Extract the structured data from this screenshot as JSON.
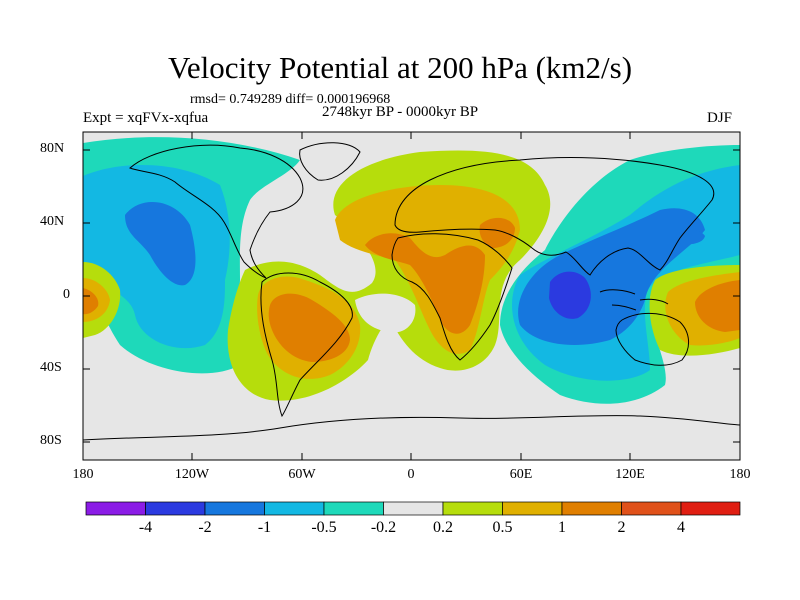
{
  "title": "Velocity Potential at 200 hPa (km2/s)",
  "stats_line": "rmsd= 0.749289 diff= 0.000196968",
  "experiment_label": "Expt = xqFVx-xqfua",
  "period_label": "2748kyr BP - 0000kyr BP",
  "season_label": "DJF",
  "lat_labels": [
    "80N",
    "40N",
    "0",
    "40S",
    "80S"
  ],
  "lon_labels": [
    "180",
    "120W",
    "60W",
    "0",
    "60E",
    "120E",
    "180"
  ],
  "chart_data": {
    "type": "heatmap",
    "title": "Velocity Potential at 200 hPa (km2/s)",
    "projection": "cylindrical equidistant",
    "x_range": [
      -180,
      180
    ],
    "y_range": [
      -90,
      90
    ],
    "x_ticks": [
      -180,
      -120,
      -60,
      0,
      60,
      120,
      180
    ],
    "y_ticks": [
      80,
      40,
      0,
      -40,
      -80
    ],
    "colorbar": {
      "levels": [
        -4,
        -2,
        -1,
        -0.5,
        -0.2,
        0.2,
        0.5,
        1,
        2,
        4
      ],
      "level_labels": [
        "-4",
        "-2",
        "-1",
        "-0.5",
        "-0.2",
        "0.2",
        "0.5",
        "1",
        "2",
        "4"
      ],
      "colors": [
        "#8b1ce6",
        "#2b3ae0",
        "#1677de",
        "#13b8e3",
        "#1ed9ba",
        "#e6e6e6",
        "#b6dd0c",
        "#e0b000",
        "#e07f00",
        "#e0511a",
        "#e01e12"
      ]
    },
    "features": [
      {
        "name": "negative center Indian Ocean / Maritime Continent",
        "lon": 80,
        "lat": 0,
        "value_range": "< -2"
      },
      {
        "name": "negative region North Pacific",
        "lon": -140,
        "lat": 30,
        "value_range": "-1 to -0.5"
      },
      {
        "name": "positive region Africa",
        "lon": 25,
        "lat": 10,
        "value_range": "1 to 2"
      },
      {
        "name": "positive region South America",
        "lon": -50,
        "lat": -15,
        "value_range": "1 to 2"
      },
      {
        "name": "positive region central Pacific",
        "lon": 165,
        "lat": 0,
        "value_range": "1 to 2"
      }
    ]
  }
}
